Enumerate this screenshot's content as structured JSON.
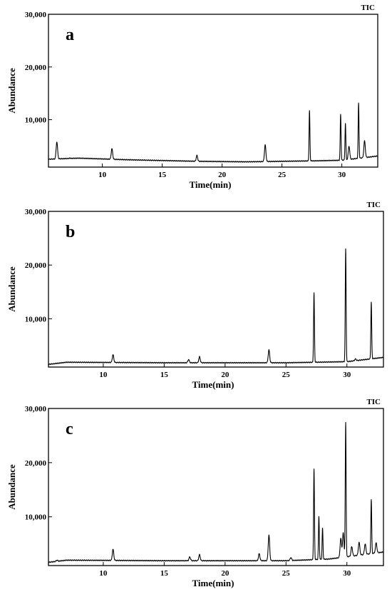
{
  "chart_data": [
    {
      "type": "line",
      "panel": "a",
      "series_label": "TIC",
      "xlabel": "Time(min)",
      "ylabel": "Abundance",
      "xlim": [
        5.5,
        33
      ],
      "ylim": [
        1000,
        30000
      ],
      "x_ticks": [
        10,
        15,
        20,
        25,
        30
      ],
      "y_ticks": [
        10000,
        20000,
        30000
      ],
      "y_tick_labels": [
        "10,000",
        "20,000",
        "30,000"
      ],
      "baseline": [
        [
          5.5,
          2500
        ],
        [
          8,
          2700
        ],
        [
          12,
          2400
        ],
        [
          18,
          2100
        ],
        [
          22,
          2000
        ],
        [
          28,
          2200
        ],
        [
          30,
          2300
        ],
        [
          33,
          3100
        ]
      ],
      "peaks": [
        {
          "x": 6.2,
          "y": 5800
        },
        {
          "x": 7.3,
          "y": 2700
        },
        {
          "x": 10.8,
          "y": 4500
        },
        {
          "x": 17.9,
          "y": 3200
        },
        {
          "x": 23.6,
          "y": 5200
        },
        {
          "x": 27.3,
          "y": 11700
        },
        {
          "x": 29.9,
          "y": 11000
        },
        {
          "x": 30.3,
          "y": 9300
        },
        {
          "x": 30.6,
          "y": 5000
        },
        {
          "x": 31.4,
          "y": 13100
        },
        {
          "x": 31.9,
          "y": 6000
        }
      ]
    },
    {
      "type": "line",
      "panel": "b",
      "series_label": "TIC",
      "xlabel": "Time(min)",
      "ylabel": "Abundance",
      "xlim": [
        5.5,
        33
      ],
      "ylim": [
        1000,
        30000
      ],
      "x_ticks": [
        10,
        15,
        20,
        25,
        30
      ],
      "y_ticks": [
        10000,
        20000,
        30000
      ],
      "y_tick_labels": [
        "10,000",
        "20,000",
        "30,000"
      ],
      "baseline": [
        [
          5.5,
          1500
        ],
        [
          7,
          1900
        ],
        [
          15,
          1800
        ],
        [
          25,
          1800
        ],
        [
          30,
          2000
        ],
        [
          33,
          2800
        ]
      ],
      "peaks": [
        {
          "x": 10.8,
          "y": 3300
        },
        {
          "x": 17.0,
          "y": 2400
        },
        {
          "x": 17.9,
          "y": 2900
        },
        {
          "x": 23.6,
          "y": 4200
        },
        {
          "x": 27.3,
          "y": 14800
        },
        {
          "x": 29.9,
          "y": 23000
        },
        {
          "x": 30.7,
          "y": 2500
        },
        {
          "x": 32.0,
          "y": 13100
        }
      ]
    },
    {
      "type": "line",
      "panel": "c",
      "series_label": "TIC",
      "xlabel": "Time(min)",
      "ylabel": "Abundance",
      "xlim": [
        5.5,
        33
      ],
      "ylim": [
        1000,
        30000
      ],
      "x_ticks": [
        10,
        15,
        20,
        25,
        30
      ],
      "y_ticks": [
        10000,
        20000,
        30000
      ],
      "y_tick_labels": [
        "10,000",
        "20,000",
        "30,000"
      ],
      "baseline": [
        [
          5.5,
          1600
        ],
        [
          7,
          2000
        ],
        [
          15,
          1900
        ],
        [
          25,
          1900
        ],
        [
          28.5,
          2200
        ],
        [
          33,
          3500
        ]
      ],
      "peaks": [
        {
          "x": 6.2,
          "y": 2000
        },
        {
          "x": 10.8,
          "y": 4000
        },
        {
          "x": 17.1,
          "y": 2600
        },
        {
          "x": 17.9,
          "y": 3000
        },
        {
          "x": 22.8,
          "y": 3200
        },
        {
          "x": 23.6,
          "y": 6600
        },
        {
          "x": 25.4,
          "y": 2500
        },
        {
          "x": 27.3,
          "y": 18800
        },
        {
          "x": 27.7,
          "y": 10000
        },
        {
          "x": 28.0,
          "y": 7900
        },
        {
          "x": 29.5,
          "y": 6000
        },
        {
          "x": 29.7,
          "y": 7000
        },
        {
          "x": 29.9,
          "y": 27400
        },
        {
          "x": 30.4,
          "y": 4500
        },
        {
          "x": 31.0,
          "y": 5300
        },
        {
          "x": 31.5,
          "y": 5000
        },
        {
          "x": 32.0,
          "y": 13200
        },
        {
          "x": 32.4,
          "y": 5200
        }
      ]
    }
  ]
}
